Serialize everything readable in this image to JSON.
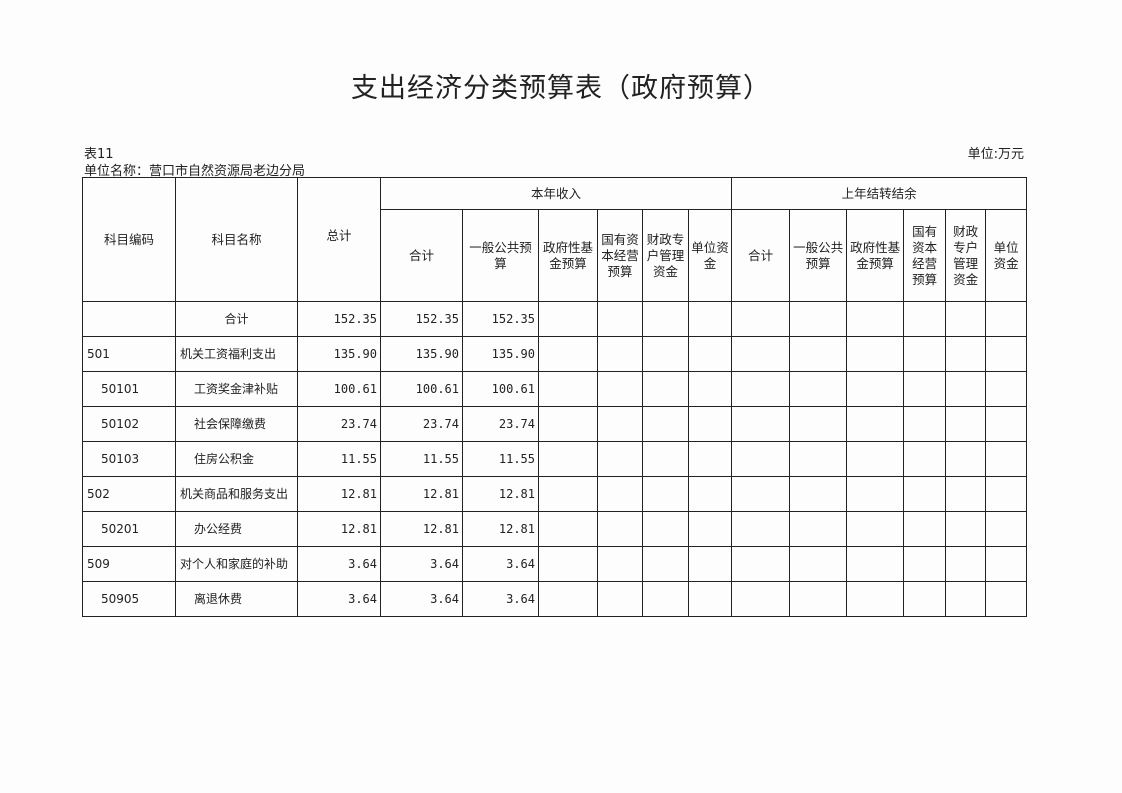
{
  "title": "支出经济分类预算表（政府预算）",
  "table_no": "表11",
  "unit_name": "单位名称：营口市自然资源局老边分局",
  "unit": "单位:万元",
  "headers": {
    "code": "科目编码",
    "name": "科目名称",
    "total": "总计",
    "current_year": "本年收入",
    "prior_year": "上年结转结余",
    "current_cols": [
      "合计",
      "一般公共预算",
      "政府性基金预算",
      "国有资本经营预算",
      "财政专户管理资金",
      "单位资金"
    ],
    "prior_cols": [
      "合计",
      "一般公共预算",
      "政府性基金预算",
      "国有资本经营预算",
      "财政专户管理资金",
      "单位资金"
    ]
  },
  "rows": [
    {
      "code": "",
      "name": "合计",
      "total": "152.35",
      "cur_total": "152.35",
      "cur_general": "152.35"
    },
    {
      "code": "501",
      "name": "机关工资福利支出",
      "total": "135.90",
      "cur_total": "135.90",
      "cur_general": "135.90"
    },
    {
      "code": "50101",
      "name": "工资奖金津补贴",
      "total": "100.61",
      "cur_total": "100.61",
      "cur_general": "100.61"
    },
    {
      "code": "50102",
      "name": "社会保障缴费",
      "total": "23.74",
      "cur_total": "23.74",
      "cur_general": "23.74"
    },
    {
      "code": "50103",
      "name": "住房公积金",
      "total": "11.55",
      "cur_total": "11.55",
      "cur_general": "11.55"
    },
    {
      "code": "502",
      "name": "机关商品和服务支出",
      "total": "12.81",
      "cur_total": "12.81",
      "cur_general": "12.81"
    },
    {
      "code": "50201",
      "name": "办公经费",
      "total": "12.81",
      "cur_total": "12.81",
      "cur_general": "12.81"
    },
    {
      "code": "509",
      "name": "对个人和家庭的补助",
      "total": "3.64",
      "cur_total": "3.64",
      "cur_general": "3.64"
    },
    {
      "code": "50905",
      "name": "离退休费",
      "total": "3.64",
      "cur_total": "3.64",
      "cur_general": "3.64"
    }
  ]
}
